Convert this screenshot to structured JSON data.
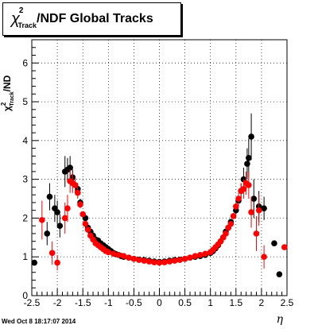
{
  "chart_data": {
    "type": "scatter",
    "title": "/NDF  Global Tracks",
    "title_symbol": "χ",
    "title_sup": "2",
    "title_sub": "Track",
    "ylabel_symbol": "χ",
    "ylabel_sup": "2",
    "ylabel_sub": "Track",
    "ylabel_rest": "/ND",
    "xlabel": "η",
    "xlim": [
      -2.5,
      2.5
    ],
    "ylim": [
      0,
      6.6
    ],
    "xticks": [
      -2.5,
      -2,
      -1.5,
      -1,
      -0.5,
      0,
      0.5,
      1,
      1.5,
      2,
      2.5
    ],
    "xtick_labels": [
      "-2.5",
      "-2",
      "-1.5",
      "-1",
      "-0.5",
      "0",
      "0.5",
      "1",
      "1.5",
      "2",
      "2.5"
    ],
    "yticks": [
      0,
      1,
      2,
      3,
      4,
      5,
      6
    ],
    "ytick_labels": [
      "0",
      "1",
      "2",
      "3",
      "4",
      "5",
      "6"
    ],
    "grid": true,
    "series": [
      {
        "color": "#000000",
        "points": [
          [
            -2.45,
            0.85,
            0.05
          ],
          [
            -2.2,
            1.6,
            0.3
          ],
          [
            -2.15,
            2.55,
            0.35
          ],
          [
            -2.05,
            2.25,
            0.35
          ],
          [
            -2.0,
            2.15,
            0.3
          ],
          [
            -1.95,
            1.8,
            0.3
          ],
          [
            -1.85,
            3.2,
            0.4
          ],
          [
            -1.8,
            3.25,
            0.3
          ],
          [
            -1.75,
            3.3,
            0.3
          ],
          [
            -1.7,
            3.05,
            0.2
          ],
          [
            -1.6,
            2.75,
            0.15
          ],
          [
            -1.55,
            2.4,
            0.1
          ],
          [
            -1.45,
            2.0,
            0.08
          ],
          [
            -1.4,
            1.75,
            0.05
          ],
          [
            -1.35,
            1.65,
            0.05
          ],
          [
            -1.3,
            1.55,
            0.05
          ],
          [
            -1.25,
            1.45,
            0.04
          ],
          [
            -1.2,
            1.42,
            0.04
          ],
          [
            -1.15,
            1.35,
            0.04
          ],
          [
            -1.1,
            1.3,
            0.03
          ],
          [
            -1.05,
            1.25,
            0.03
          ],
          [
            -1.0,
            1.2,
            0.03
          ],
          [
            -0.95,
            1.15,
            0.03
          ],
          [
            -0.9,
            1.1,
            0.02
          ],
          [
            -0.85,
            1.07,
            0.02
          ],
          [
            -0.8,
            1.05,
            0.02
          ],
          [
            -0.75,
            1.02,
            0.02
          ],
          [
            -0.7,
            1.0,
            0.02
          ],
          [
            -0.6,
            0.98,
            0.02
          ],
          [
            -0.5,
            0.95,
            0.02
          ],
          [
            -0.4,
            0.93,
            0.02
          ],
          [
            -0.3,
            0.92,
            0.02
          ],
          [
            -0.2,
            0.9,
            0.02
          ],
          [
            -0.1,
            0.88,
            0.02
          ],
          [
            0.0,
            0.87,
            0.02
          ],
          [
            0.1,
            0.88,
            0.02
          ],
          [
            0.2,
            0.9,
            0.02
          ],
          [
            0.3,
            0.92,
            0.02
          ],
          [
            0.4,
            0.93,
            0.02
          ],
          [
            0.5,
            0.95,
            0.02
          ],
          [
            0.6,
            0.98,
            0.02
          ],
          [
            0.7,
            1.0,
            0.02
          ],
          [
            0.8,
            1.02,
            0.02
          ],
          [
            0.9,
            1.05,
            0.02
          ],
          [
            1.0,
            1.1,
            0.03
          ],
          [
            1.05,
            1.15,
            0.03
          ],
          [
            1.1,
            1.22,
            0.03
          ],
          [
            1.15,
            1.3,
            0.04
          ],
          [
            1.2,
            1.4,
            0.04
          ],
          [
            1.25,
            1.5,
            0.05
          ],
          [
            1.3,
            1.65,
            0.05
          ],
          [
            1.35,
            1.75,
            0.05
          ],
          [
            1.4,
            1.9,
            0.08
          ],
          [
            1.5,
            2.2,
            0.1
          ],
          [
            1.55,
            2.45,
            0.15
          ],
          [
            1.6,
            2.7,
            0.2
          ],
          [
            1.65,
            3.0,
            0.3
          ],
          [
            1.72,
            3.4,
            0.4
          ],
          [
            1.75,
            3.55,
            0.5
          ],
          [
            1.8,
            4.1,
            0.6
          ],
          [
            1.85,
            2.5,
            0.5
          ],
          [
            1.95,
            2.3,
            0.4
          ],
          [
            2.05,
            2.25,
            0.3
          ],
          [
            2.25,
            1.35,
            0.05
          ],
          [
            2.35,
            0.55,
            0.05
          ]
        ]
      },
      {
        "color": "#ff0000",
        "points": [
          [
            -2.3,
            1.95,
            0.5
          ],
          [
            -2.1,
            1.1,
            0.3
          ],
          [
            -2.0,
            0.85,
            0.2
          ],
          [
            -1.85,
            2.0,
            0.4
          ],
          [
            -1.8,
            2.25,
            0.35
          ],
          [
            -1.75,
            2.95,
            0.3
          ],
          [
            -1.7,
            2.9,
            0.25
          ],
          [
            -1.65,
            2.85,
            0.2
          ],
          [
            -1.6,
            2.65,
            0.15
          ],
          [
            -1.55,
            2.35,
            0.1
          ],
          [
            -1.5,
            2.1,
            0.08
          ],
          [
            -1.45,
            1.85,
            0.05
          ],
          [
            -1.4,
            1.7,
            0.05
          ],
          [
            -1.35,
            1.55,
            0.04
          ],
          [
            -1.3,
            1.45,
            0.04
          ],
          [
            -1.25,
            1.35,
            0.03
          ],
          [
            -1.2,
            1.3,
            0.03
          ],
          [
            -1.15,
            1.25,
            0.03
          ],
          [
            -1.1,
            1.2,
            0.03
          ],
          [
            -1.05,
            1.15,
            0.02
          ],
          [
            -1.0,
            1.12,
            0.02
          ],
          [
            -0.9,
            1.08,
            0.02
          ],
          [
            -0.8,
            1.05,
            0.02
          ],
          [
            -0.7,
            1.02,
            0.02
          ],
          [
            -0.6,
            0.98,
            0.02
          ],
          [
            -0.5,
            0.95,
            0.02
          ],
          [
            -0.4,
            0.92,
            0.02
          ],
          [
            -0.3,
            0.9,
            0.02
          ],
          [
            -0.2,
            0.88,
            0.02
          ],
          [
            -0.1,
            0.86,
            0.02
          ],
          [
            0.0,
            0.85,
            0.02
          ],
          [
            0.1,
            0.86,
            0.02
          ],
          [
            0.2,
            0.88,
            0.02
          ],
          [
            0.3,
            0.9,
            0.02
          ],
          [
            0.4,
            0.92,
            0.02
          ],
          [
            0.5,
            0.95,
            0.02
          ],
          [
            0.6,
            0.98,
            0.02
          ],
          [
            0.7,
            1.02,
            0.02
          ],
          [
            0.8,
            1.05,
            0.02
          ],
          [
            0.9,
            1.08,
            0.02
          ],
          [
            1.0,
            1.12,
            0.02
          ],
          [
            1.05,
            1.18,
            0.03
          ],
          [
            1.1,
            1.25,
            0.03
          ],
          [
            1.15,
            1.32,
            0.03
          ],
          [
            1.2,
            1.4,
            0.04
          ],
          [
            1.25,
            1.5,
            0.04
          ],
          [
            1.3,
            1.6,
            0.05
          ],
          [
            1.35,
            1.75,
            0.05
          ],
          [
            1.4,
            1.85,
            0.05
          ],
          [
            1.45,
            2.05,
            0.08
          ],
          [
            1.5,
            2.3,
            0.1
          ],
          [
            1.55,
            2.5,
            0.15
          ],
          [
            1.6,
            2.7,
            0.2
          ],
          [
            1.65,
            2.75,
            0.25
          ],
          [
            1.7,
            2.9,
            0.3
          ],
          [
            1.75,
            2.85,
            0.35
          ],
          [
            1.8,
            2.15,
            0.4
          ],
          [
            1.9,
            1.6,
            0.45
          ],
          [
            1.95,
            2.2,
            0.4
          ],
          [
            2.05,
            1.0,
            0.3
          ],
          [
            2.45,
            1.25,
            0.05
          ]
        ]
      }
    ]
  },
  "timestamp": "Wed Oct  8 18:17:07 2014"
}
